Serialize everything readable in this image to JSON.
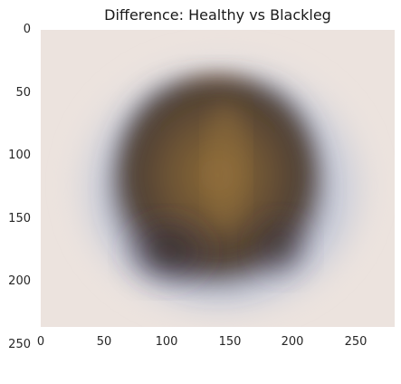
{
  "figure": {
    "title": "Difference: Healthy vs Blackleg",
    "x_ticks": [
      "0",
      "50",
      "100",
      "150",
      "200",
      "250"
    ],
    "y_ticks": [
      "0",
      "50",
      "100",
      "150",
      "200",
      "250"
    ],
    "x_range": [
      0,
      280
    ],
    "y_range": [
      0,
      260
    ],
    "y_axis_inverted": true,
    "grid": false,
    "colors": {
      "background": "#ece3de",
      "dark_core": "#3c3029",
      "brown_center": "#8c6a38",
      "blue_halo": "#a9b6cf",
      "purple_shadow": "#4a3f5a"
    }
  }
}
